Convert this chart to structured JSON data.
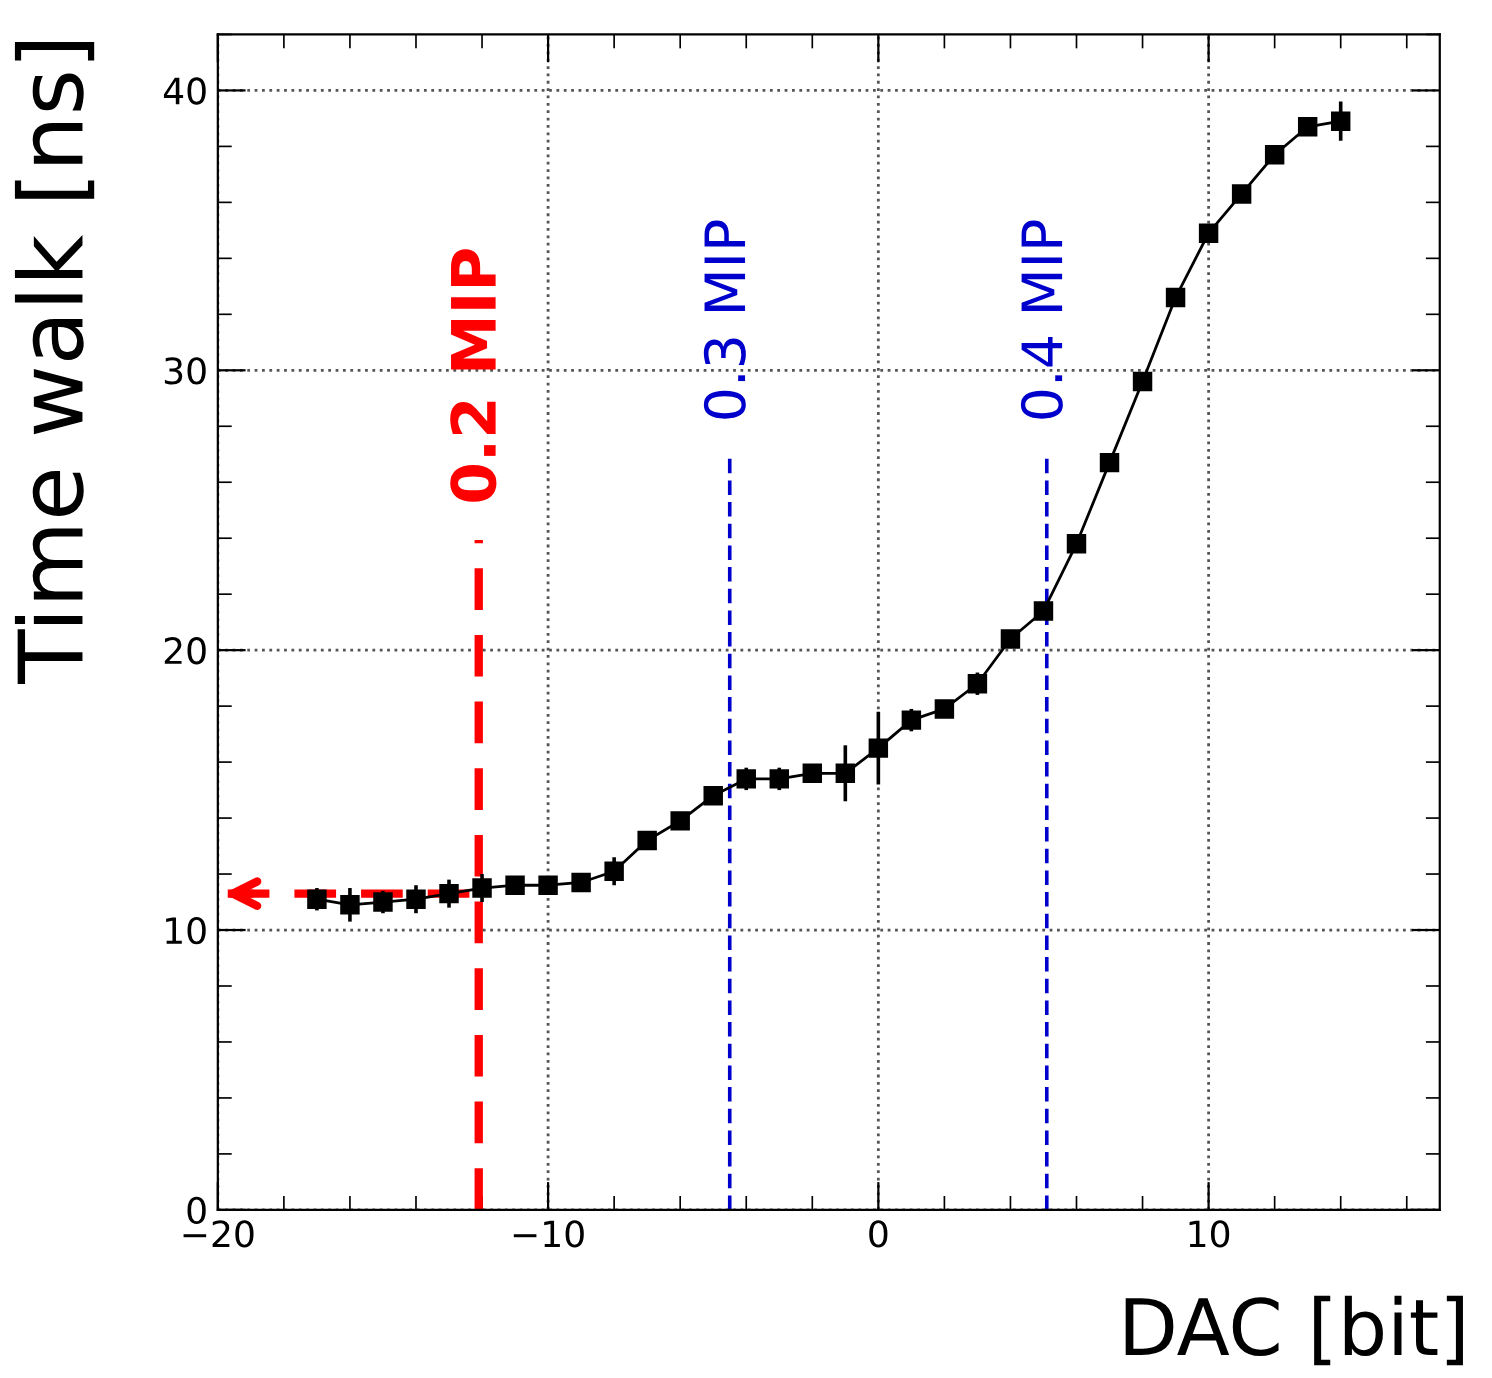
{
  "chart_data": {
    "type": "line",
    "xlabel": "DAC [bit]",
    "ylabel": "Time walk [ns]",
    "x": [
      -17,
      -16,
      -15,
      -14,
      -13,
      -12,
      -11,
      -10,
      -9,
      -8,
      -7,
      -6,
      -5,
      -4,
      -3,
      -2,
      -1,
      0,
      1,
      2,
      3,
      4,
      5,
      6,
      7,
      8,
      9,
      10,
      11,
      12,
      13,
      14
    ],
    "series": [
      {
        "color": "#000000",
        "values": [
          11.1,
          10.9,
          11.0,
          11.1,
          11.3,
          11.5,
          11.6,
          11.6,
          11.7,
          12.1,
          13.2,
          13.9,
          14.8,
          15.4,
          15.4,
          15.6,
          15.6,
          16.5,
          17.5,
          17.9,
          18.8,
          20.4,
          21.4,
          23.8,
          26.7,
          29.6,
          32.6,
          34.9,
          36.3,
          37.7,
          38.7,
          38.9
        ],
        "errors": [
          0.4,
          0.6,
          0.4,
          0.5,
          0.5,
          0.5,
          0.3,
          0.3,
          0.3,
          0.5,
          0.3,
          0.3,
          0.3,
          0.4,
          0.4,
          0.3,
          1.0,
          1.3,
          0.4,
          0.3,
          0.4,
          0.3,
          0.3,
          0.3,
          0.3,
          0.3,
          0.3,
          0.3,
          0.3,
          0.3,
          0.3,
          0.7
        ]
      }
    ],
    "marker": "square",
    "line_style": "solid",
    "xlim": [
      -20,
      17
    ],
    "xticks": [
      {
        "value": -20,
        "label": "−20"
      },
      {
        "value": -10,
        "label": "−10"
      },
      0,
      10
    ],
    "ylim": [
      0,
      42
    ],
    "yticks": [
      0,
      10,
      20,
      30,
      40
    ],
    "grid": true,
    "legend": false,
    "ref_lines": [
      {
        "axis": "x",
        "value": -12.1,
        "label": "0.2 MIP",
        "color": "#ff0000",
        "line_style": "dashed"
      },
      {
        "axis": "x",
        "value": -4.5,
        "label": "0.3 MIP",
        "color": "#0000cc",
        "line_style": "dashed"
      },
      {
        "axis": "x",
        "value": 5.1,
        "label": "0.4 MIP",
        "color": "#0000cc",
        "line_style": "dashed"
      },
      {
        "axis": "y",
        "value": 11.3,
        "label": null,
        "color": "#ff0000",
        "line_style": "dashed"
      }
    ]
  }
}
